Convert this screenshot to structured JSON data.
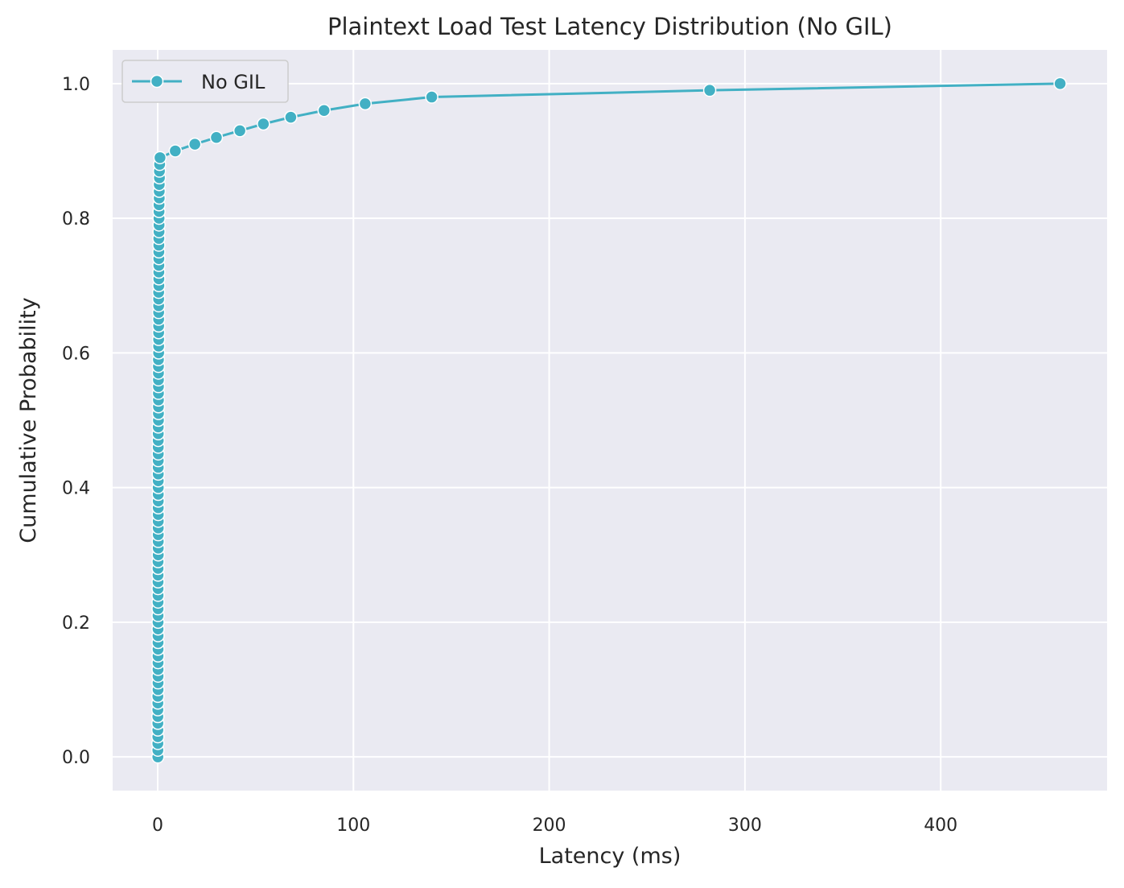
{
  "chart_data": {
    "type": "line",
    "title": "Plaintext Load Test Latency Distribution (No GIL)",
    "xlabel": "Latency (ms)",
    "ylabel": "Cumulative Probability",
    "xlim": [
      -23,
      485
    ],
    "ylim": [
      -0.05,
      1.05
    ],
    "xticks": [
      0,
      100,
      200,
      300,
      400
    ],
    "xtick_labels": [
      "0",
      "100",
      "200",
      "300",
      "400"
    ],
    "yticks": [
      0.0,
      0.2,
      0.4,
      0.6,
      0.8,
      1.0
    ],
    "ytick_labels": [
      "0.0",
      "0.2",
      "0.4",
      "0.6",
      "0.8",
      "1.0"
    ],
    "grid": true,
    "legend_position": "upper-left",
    "colors": {
      "series": "#42b0c4",
      "plot_bg": "#eaeaf2",
      "grid": "#ffffff"
    },
    "series": [
      {
        "name": "No GIL",
        "marker": "circle",
        "x": [
          0.1,
          0.1,
          0.1,
          0.1,
          0.1,
          0.1,
          0.1,
          0.1,
          0.1,
          0.1,
          0.2,
          0.2,
          0.2,
          0.2,
          0.2,
          0.2,
          0.2,
          0.2,
          0.2,
          0.2,
          0.2,
          0.2,
          0.2,
          0.2,
          0.2,
          0.2,
          0.2,
          0.2,
          0.2,
          0.2,
          0.3,
          0.3,
          0.3,
          0.3,
          0.3,
          0.3,
          0.3,
          0.3,
          0.3,
          0.3,
          0.3,
          0.3,
          0.3,
          0.3,
          0.3,
          0.3,
          0.3,
          0.3,
          0.3,
          0.3,
          0.4,
          0.4,
          0.4,
          0.4,
          0.4,
          0.4,
          0.4,
          0.4,
          0.4,
          0.4,
          0.5,
          0.5,
          0.5,
          0.5,
          0.5,
          0.5,
          0.5,
          0.5,
          0.5,
          0.5,
          0.6,
          0.6,
          0.6,
          0.6,
          0.6,
          0.6,
          0.6,
          0.6,
          0.7,
          0.7,
          0.7,
          0.7,
          0.7,
          0.8,
          0.8,
          0.8,
          0.9,
          0.9,
          1.0,
          1.2,
          9,
          19,
          30,
          42,
          54,
          68,
          85,
          106,
          140,
          282,
          461
        ],
        "y": [
          0.0,
          0.01,
          0.02,
          0.03,
          0.04,
          0.05,
          0.06,
          0.07,
          0.08,
          0.09,
          0.1,
          0.11,
          0.12,
          0.13,
          0.14,
          0.15,
          0.16,
          0.17,
          0.18,
          0.19,
          0.2,
          0.21,
          0.22,
          0.23,
          0.24,
          0.25,
          0.26,
          0.27,
          0.28,
          0.29,
          0.3,
          0.31,
          0.32,
          0.33,
          0.34,
          0.35,
          0.36,
          0.37,
          0.38,
          0.39,
          0.4,
          0.41,
          0.42,
          0.43,
          0.44,
          0.45,
          0.46,
          0.47,
          0.48,
          0.49,
          0.5,
          0.51,
          0.52,
          0.53,
          0.54,
          0.55,
          0.56,
          0.57,
          0.58,
          0.59,
          0.6,
          0.61,
          0.62,
          0.63,
          0.64,
          0.65,
          0.66,
          0.67,
          0.68,
          0.69,
          0.7,
          0.71,
          0.72,
          0.73,
          0.74,
          0.75,
          0.76,
          0.77,
          0.78,
          0.79,
          0.8,
          0.81,
          0.82,
          0.83,
          0.84,
          0.85,
          0.86,
          0.87,
          0.88,
          0.89,
          0.9,
          0.91,
          0.92,
          0.93,
          0.94,
          0.95,
          0.96,
          0.97,
          0.98,
          0.99,
          1.0
        ]
      }
    ]
  }
}
